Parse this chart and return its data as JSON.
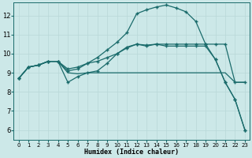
{
  "xlabel": "Humidex (Indice chaleur)",
  "bg_color": "#cce8e8",
  "grid_color": "#b8d8d8",
  "line_color": "#1a6b6b",
  "xlim": [
    -0.5,
    23.5
  ],
  "ylim": [
    5.5,
    12.7
  ],
  "yticks": [
    6,
    7,
    8,
    9,
    10,
    11,
    12
  ],
  "xticks": [
    0,
    1,
    2,
    3,
    4,
    5,
    6,
    7,
    8,
    9,
    10,
    11,
    12,
    13,
    14,
    15,
    16,
    17,
    18,
    19,
    20,
    21,
    22,
    23
  ],
  "line1": [
    8.7,
    9.3,
    9.4,
    9.6,
    9.6,
    9.1,
    9.2,
    9.5,
    9.8,
    10.2,
    10.6,
    11.1,
    12.1,
    12.3,
    12.45,
    12.55,
    12.4,
    12.2,
    11.7,
    10.5,
    9.7,
    8.5,
    7.6,
    6.0
  ],
  "line2": [
    8.7,
    9.3,
    9.4,
    9.6,
    9.6,
    9.2,
    9.3,
    9.5,
    9.6,
    9.8,
    10.0,
    10.3,
    10.5,
    10.45,
    10.5,
    10.5,
    10.5,
    10.5,
    10.5,
    10.5,
    10.5,
    10.5,
    8.5,
    8.5
  ],
  "line3": [
    8.7,
    9.3,
    9.4,
    9.6,
    9.6,
    9.0,
    8.95,
    9.0,
    9.0,
    9.0,
    9.0,
    9.0,
    9.0,
    9.0,
    9.0,
    9.0,
    9.0,
    9.0,
    9.0,
    9.0,
    9.0,
    9.0,
    8.5,
    8.5
  ],
  "line4": [
    8.7,
    9.3,
    9.4,
    9.6,
    9.6,
    8.5,
    8.8,
    9.0,
    9.1,
    9.5,
    10.0,
    10.35,
    10.5,
    10.4,
    10.5,
    10.4,
    10.4,
    10.4,
    10.4,
    10.4,
    9.7,
    8.5,
    7.6,
    6.0
  ],
  "markers_line1": [
    0,
    1,
    2,
    3,
    4,
    5,
    6,
    7,
    8,
    9,
    10,
    11,
    12,
    13,
    14,
    15,
    16,
    17,
    18,
    19,
    20,
    21,
    22,
    23
  ],
  "markers_line2": [
    0,
    1,
    2,
    3,
    4,
    5,
    6,
    7,
    8,
    9,
    10,
    11,
    12,
    13,
    14,
    15,
    16,
    17,
    18,
    19,
    20,
    21,
    22,
    23
  ],
  "markers_line4": [
    0,
    1,
    2,
    3,
    4,
    5,
    6,
    7,
    8,
    9,
    10,
    11,
    12,
    13,
    14,
    15,
    16,
    17,
    18,
    19,
    20,
    21,
    22,
    23
  ]
}
